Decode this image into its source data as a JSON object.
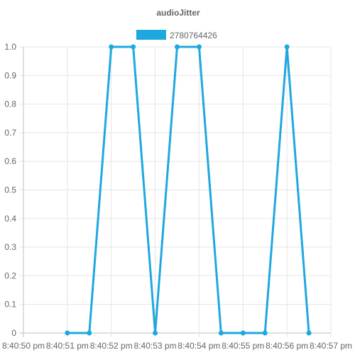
{
  "chart_data": {
    "type": "line",
    "title": "audioJitter",
    "legend_position": "top",
    "grid": true,
    "xlabel": "",
    "ylabel": "",
    "ylim": [
      0,
      1
    ],
    "y_ticks": [
      "0",
      "0.1",
      "0.2",
      "0.3",
      "0.4",
      "0.5",
      "0.6",
      "0.7",
      "0.8",
      "0.9",
      "1.0"
    ],
    "x_ticks": [
      "8:40:50 pm",
      "8:40:51 pm",
      "8:40:52 pm",
      "8:40:53 pm",
      "8:40:54 pm",
      "8:40:55 pm",
      "8:40:56 pm",
      "8:40:57 pm"
    ],
    "series": [
      {
        "name": "2780764426",
        "color": "#1ea8e0",
        "x": [
          "8:40:51 pm",
          "8:40:51.5 pm",
          "8:40:52 pm",
          "8:40:52.5 pm",
          "8:40:53 pm",
          "8:40:53.5 pm",
          "8:40:54 pm",
          "8:40:54.5 pm",
          "8:40:55 pm",
          "8:40:55.5 pm",
          "8:40:56 pm",
          "8:40:56.5 pm"
        ],
        "values": [
          0,
          0,
          1,
          1,
          0,
          1,
          1,
          0,
          0,
          0,
          1,
          0
        ]
      }
    ]
  }
}
